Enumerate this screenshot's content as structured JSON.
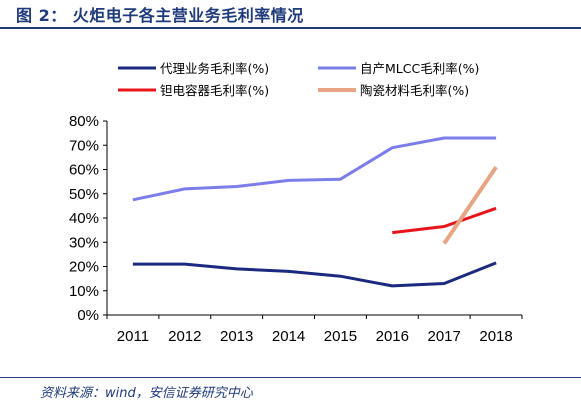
{
  "header": {
    "title": "图 2：  火炬电子各主营业务毛利率情况"
  },
  "footer": {
    "source": "资料来源：wind，安信证券研究中心"
  },
  "chart_data": {
    "type": "line",
    "x": [
      "2011",
      "2012",
      "2013",
      "2014",
      "2015",
      "2016",
      "2017",
      "2018"
    ],
    "ylim": [
      0,
      80
    ],
    "yticks": [
      "0%",
      "10%",
      "20%",
      "30%",
      "40%",
      "50%",
      "60%",
      "70%",
      "80%"
    ],
    "legend_placement": "top",
    "grid": false,
    "series": [
      {
        "name": "代理业务毛利率(%)",
        "color": "#1b2a80",
        "values": [
          21,
          21,
          19,
          18,
          16,
          12,
          13,
          21.5
        ]
      },
      {
        "name": "自产MLCC毛利率(%)",
        "color": "#7b7de8",
        "values": [
          47.5,
          52,
          53,
          55.5,
          56,
          69,
          73,
          73
        ]
      },
      {
        "name": "钽电容器毛利率(%)",
        "color": "#e8141b",
        "values": [
          null,
          null,
          null,
          null,
          null,
          34,
          36.5,
          44
        ]
      },
      {
        "name": "陶瓷材料毛利率(%)",
        "color": "#e8a584",
        "values": [
          null,
          null,
          null,
          null,
          null,
          null,
          29.5,
          61
        ]
      }
    ]
  }
}
